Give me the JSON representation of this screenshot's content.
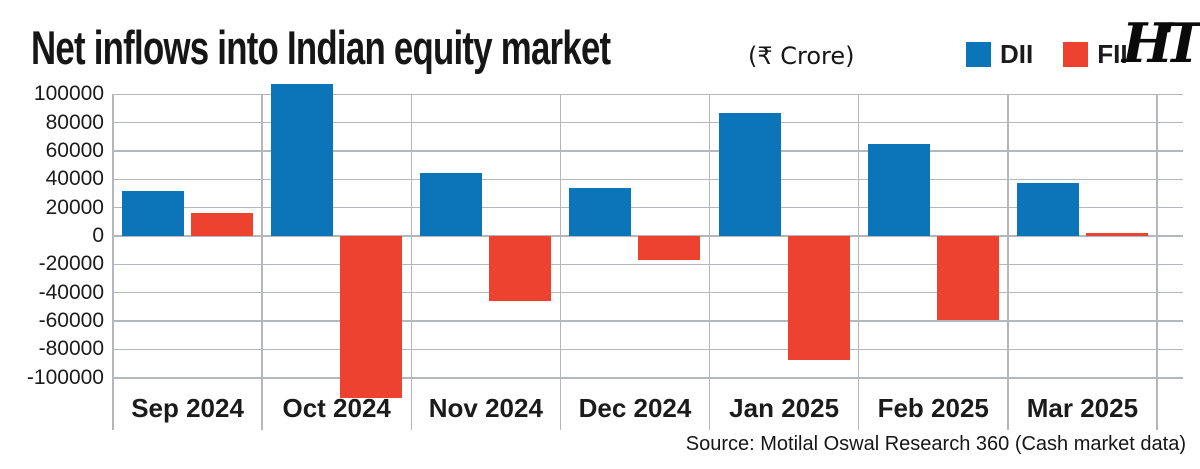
{
  "title": "Net inflows into Indian equity market",
  "unit_label": "(₹ Crore)",
  "brand": "HT",
  "source": "Source: Motilal Oswal Research 360 (Cash market data)",
  "legend": [
    {
      "label": "DII",
      "color": "#0c75ba"
    },
    {
      "label": "FII",
      "color": "#ee4231"
    }
  ],
  "chart_data": {
    "type": "bar",
    "title": "Net inflows into Indian equity market",
    "unit": "₹ Crore",
    "categories": [
      "Sep 2024",
      "Oct 2024",
      "Nov 2024",
      "Dec 2024",
      "Jan 2025",
      "Feb 2025",
      "Mar 2025"
    ],
    "series": [
      {
        "name": "DII",
        "color": "#0c75ba",
        "values": [
          32000,
          107500,
          44500,
          34000,
          87000,
          65000,
          37500
        ]
      },
      {
        "name": "FII",
        "color": "#ee4231",
        "values": [
          16000,
          -114000,
          -46000,
          -17000,
          -87500,
          -59000,
          2000
        ]
      }
    ],
    "yticks": [
      100000,
      80000,
      60000,
      40000,
      20000,
      0,
      -20000,
      -40000,
      -60000,
      -80000,
      -100000
    ],
    "ylim": [
      -115000,
      114000
    ],
    "grid": true,
    "legend_position": "top-right",
    "source": "Source: Motilal Oswal Research 360 (Cash market data)"
  }
}
